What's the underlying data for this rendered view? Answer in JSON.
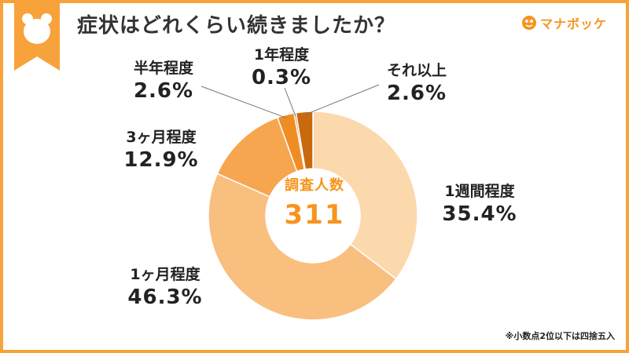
{
  "title": "症状はどれくらい続きましたか？",
  "brand": {
    "name": "マナボッケ"
  },
  "footnote": "※小数点2位以下は四捨五入",
  "colors": {
    "frame": "#f7a23a",
    "accent": "#f7941d"
  },
  "chart_data": {
    "type": "pie",
    "donut": true,
    "center_label": "調査人数",
    "center_value": "311",
    "slices": [
      {
        "label": "1週間程度",
        "value": 35.4,
        "display": "35.4%",
        "color": "#fcd8ad"
      },
      {
        "label": "1ヶ月程度",
        "value": 46.3,
        "display": "46.3%",
        "color": "#f9bf7f"
      },
      {
        "label": "3ヶ月程度",
        "value": 12.9,
        "display": "12.9%",
        "color": "#f7a650"
      },
      {
        "label": "半年程度",
        "value": 2.6,
        "display": "2.6%",
        "color": "#f08d22"
      },
      {
        "label": "1年程度",
        "value": 0.3,
        "display": "0.3%",
        "color": "#d97a14"
      },
      {
        "label": "それ以上",
        "value": 2.6,
        "display": "2.6%",
        "color": "#c8690e"
      }
    ]
  }
}
